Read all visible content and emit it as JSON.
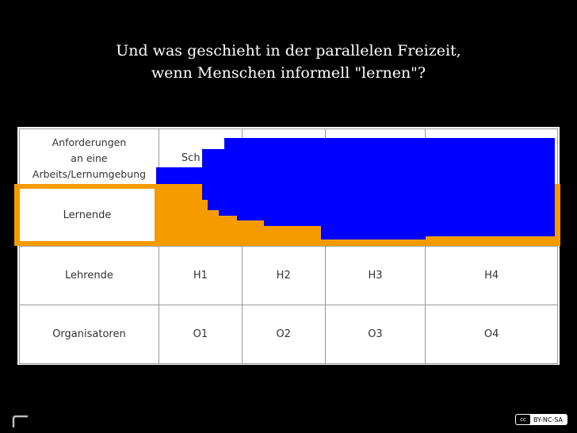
{
  "slide": {
    "title_line1": "Und was geschieht in der parallelen Freizeit,",
    "title_line2": "wenn Menschen informell \"lernen\"?"
  },
  "table": {
    "header_label_lines": [
      "Anforderungen",
      "an eine",
      "Arbeits/Lernumgebung"
    ],
    "header_partial": "Sch",
    "rows": [
      {
        "label": "Lernende",
        "cells": [
          "",
          "",
          "",
          ""
        ]
      },
      {
        "label": "Lehrende",
        "cells": [
          "H1",
          "H2",
          "H3",
          "H4"
        ]
      },
      {
        "label": "Organisatoren",
        "cells": [
          "O1",
          "O2",
          "O3",
          "O4"
        ]
      }
    ]
  },
  "colors": {
    "highlight": "#f59b00",
    "overlay": "#0000ff",
    "background": "#000000"
  },
  "license": {
    "cc": "cc",
    "text": "BY-NC-SA"
  },
  "icons": [
    "corner-bracket-icon",
    "creative-commons-icon"
  ]
}
